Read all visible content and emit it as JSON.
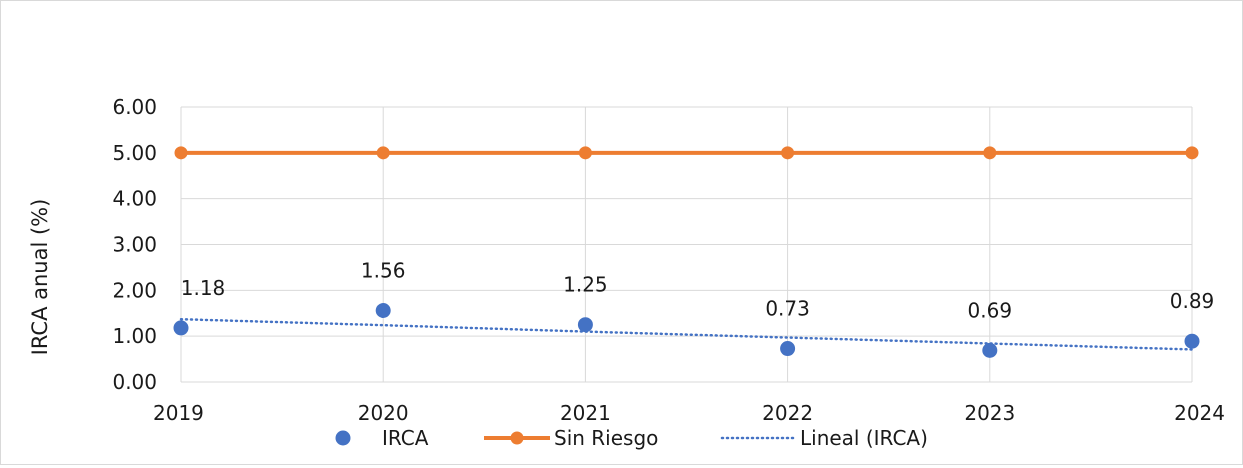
{
  "chart_data": {
    "type": "line",
    "title": "",
    "xlabel": "",
    "ylabel": "IRCA anual (%)",
    "categories": [
      "2019",
      "2020",
      "2021",
      "2022",
      "2023",
      "2024"
    ],
    "ylim": [
      0,
      6
    ],
    "y_ticks": [
      "0.00",
      "1.00",
      "2.00",
      "3.00",
      "4.00",
      "5.00",
      "6.00"
    ],
    "grid": true,
    "legend_position": "bottom",
    "series": [
      {
        "name": "IRCA",
        "style": "markers",
        "color": "#4472c4",
        "values": [
          1.18,
          1.56,
          1.25,
          0.73,
          0.69,
          0.89
        ],
        "labels": [
          "1.18",
          "1.56",
          "1.25",
          "0.73",
          "0.69",
          "0.89"
        ]
      },
      {
        "name": "Sin Riesgo",
        "style": "line-markers",
        "color": "#ed7d31",
        "values": [
          5,
          5,
          5,
          5,
          5,
          5
        ]
      },
      {
        "name": "Lineal (IRCA)",
        "style": "dotted-trendline",
        "color": "#4472c4",
        "values": [
          1.37,
          1.24,
          1.1,
          0.97,
          0.84,
          0.71
        ]
      }
    ]
  }
}
